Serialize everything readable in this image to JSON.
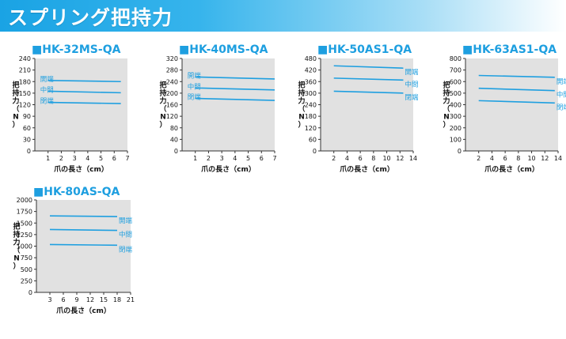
{
  "page": {
    "title": "スプリング把持力"
  },
  "colors": {
    "accent": "#1e9fe0",
    "plot_bg": "#e1e1e1",
    "title_square": "#1e9fe0"
  },
  "chart_data": [
    {
      "type": "line",
      "title": "■HK-32MS-QA",
      "xlabel": "爪の長さ（cm）",
      "ylabel": "把持力（N）",
      "xlim": [
        0,
        7
      ],
      "ylim": [
        0,
        240
      ],
      "xticks": [
        1,
        2,
        3,
        4,
        5,
        6,
        7
      ],
      "yticks": [
        0,
        30,
        60,
        90,
        120,
        150,
        180,
        210,
        240
      ],
      "grid": false,
      "series": [
        {
          "name": "開端",
          "x": [
            1,
            6.5
          ],
          "y": [
            183,
            180
          ]
        },
        {
          "name": "中間",
          "x": [
            1,
            6.5
          ],
          "y": [
            155,
            151
          ]
        },
        {
          "name": "閉端",
          "x": [
            1,
            6.5
          ],
          "y": [
            126,
            123
          ]
        }
      ]
    },
    {
      "type": "line",
      "title": "■HK-40MS-QA",
      "xlabel": "爪の長さ（cm）",
      "ylabel": "把持力（N）",
      "xlim": [
        0,
        7
      ],
      "ylim": [
        0,
        320
      ],
      "xticks": [
        1,
        2,
        3,
        4,
        5,
        6,
        7
      ],
      "yticks": [
        0,
        40,
        80,
        120,
        160,
        200,
        240,
        280,
        320
      ],
      "grid": false,
      "series": [
        {
          "name": "開端",
          "x": [
            1,
            7
          ],
          "y": [
            256,
            249
          ]
        },
        {
          "name": "中間",
          "x": [
            1,
            7
          ],
          "y": [
            218,
            211
          ]
        },
        {
          "name": "閉端",
          "x": [
            1,
            7
          ],
          "y": [
            182,
            175
          ]
        }
      ]
    },
    {
      "type": "line",
      "title": "■HK-50AS1-QA",
      "xlabel": "爪の長さ（cm）",
      "ylabel": "把持力（N）",
      "xlim": [
        0,
        14
      ],
      "ylim": [
        0,
        480
      ],
      "xticks": [
        2,
        4,
        6,
        8,
        10,
        12,
        14
      ],
      "yticks": [
        0,
        60,
        120,
        180,
        240,
        300,
        360,
        420,
        480
      ],
      "grid": false,
      "series": [
        {
          "name": "開端",
          "x": [
            2,
            12.5
          ],
          "y": [
            442,
            430
          ]
        },
        {
          "name": "中間",
          "x": [
            2,
            12.5
          ],
          "y": [
            378,
            368
          ]
        },
        {
          "name": "閉端",
          "x": [
            2,
            12.5
          ],
          "y": [
            310,
            300
          ]
        }
      ]
    },
    {
      "type": "line",
      "title": "■HK-63AS1-QA",
      "xlabel": "爪の長さ（cm）",
      "ylabel": "把持力（N）",
      "xlim": [
        0,
        14
      ],
      "ylim": [
        0,
        800
      ],
      "xticks": [
        2,
        4,
        6,
        8,
        10,
        12,
        14
      ],
      "yticks": [
        0,
        100,
        200,
        300,
        400,
        500,
        600,
        700,
        800
      ],
      "grid": false,
      "series": [
        {
          "name": "開端",
          "x": [
            2,
            13.5
          ],
          "y": [
            653,
            637
          ]
        },
        {
          "name": "中間",
          "x": [
            2,
            13.5
          ],
          "y": [
            542,
            522
          ]
        },
        {
          "name": "閉端",
          "x": [
            2,
            13.5
          ],
          "y": [
            435,
            415
          ]
        }
      ]
    },
    {
      "type": "line",
      "title": "■HK-80AS-QA",
      "xlabel": "爪の長さ（cm）",
      "ylabel": "把持力（N）",
      "xlim": [
        0,
        21
      ],
      "ylim": [
        0,
        2000
      ],
      "xticks": [
        3,
        6,
        9,
        12,
        15,
        18,
        21
      ],
      "yticks": [
        0,
        250,
        500,
        750,
        1000,
        1250,
        1500,
        1750,
        2000
      ],
      "grid": false,
      "series": [
        {
          "name": "開端",
          "x": [
            3,
            18
          ],
          "y": [
            1655,
            1640
          ]
        },
        {
          "name": "中間",
          "x": [
            3,
            18
          ],
          "y": [
            1360,
            1340
          ]
        },
        {
          "name": "閉端",
          "x": [
            3,
            18
          ],
          "y": [
            1035,
            1020
          ]
        }
      ]
    }
  ]
}
